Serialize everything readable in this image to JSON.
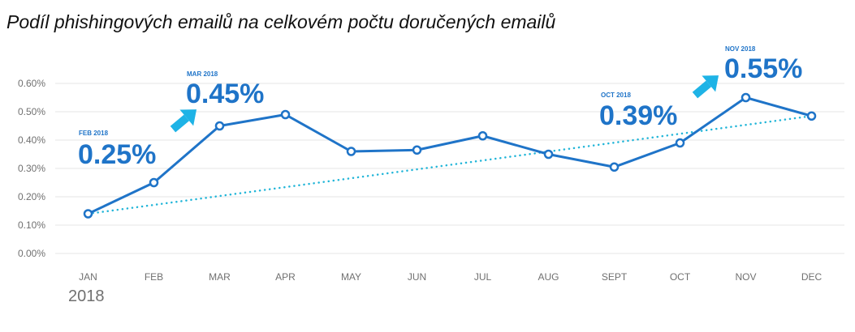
{
  "title": "Podíl phishingových emailů na celkovém počtu doručených emailů",
  "chart_data": {
    "type": "line",
    "categories": [
      "JAN",
      "FEB",
      "MAR",
      "APR",
      "MAY",
      "JUN",
      "JUL",
      "AUG",
      "SEPT",
      "OCT",
      "NOV",
      "DEC"
    ],
    "x_sublabel": "2018",
    "series": [
      {
        "values": [
          0.14,
          0.25,
          0.45,
          0.49,
          0.36,
          0.365,
          0.415,
          0.35,
          0.305,
          0.39,
          0.55,
          0.485
        ],
        "color": "#1f74c8"
      }
    ],
    "trendline": {
      "from": 0.14,
      "to": 0.485,
      "style": "dotted",
      "color": "#21b5d8"
    },
    "ylim": [
      0,
      0.6
    ],
    "yticks": [
      "0.00%",
      "0.10%",
      "0.20%",
      "0.30%",
      "0.40%",
      "0.50%",
      "0.60%"
    ],
    "grid": true,
    "annotations": [
      {
        "label": "FEB 2018",
        "value": "0.25%"
      },
      {
        "label": "MAR 2018",
        "value": "0.45%"
      },
      {
        "label": "OCT 2018",
        "value": "0.39%"
      },
      {
        "label": "NOV 2018",
        "value": "0.55%"
      }
    ]
  }
}
